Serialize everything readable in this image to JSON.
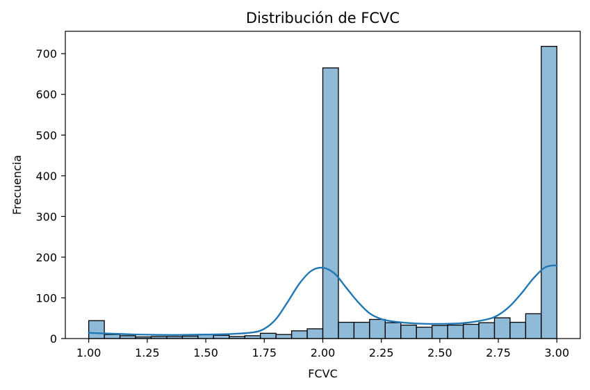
{
  "chart_data": {
    "type": "bar",
    "subtype": "histogram-with-kde",
    "title": "Distribución de FCVC",
    "xlabel": "FCVC",
    "ylabel": "Frecuencia",
    "xlim": [
      0.9,
      3.1
    ],
    "ylim": [
      0,
      755
    ],
    "xticks": [
      1.0,
      1.25,
      1.5,
      1.75,
      2.0,
      2.25,
      2.5,
      2.75,
      3.0
    ],
    "xtick_labels": [
      "1.00",
      "1.25",
      "1.50",
      "1.75",
      "2.00",
      "2.25",
      "2.50",
      "2.75",
      "3.00"
    ],
    "yticks": [
      0,
      100,
      200,
      300,
      400,
      500,
      600,
      700
    ],
    "ytick_labels": [
      "0",
      "100",
      "200",
      "300",
      "400",
      "500",
      "600",
      "700"
    ],
    "grid": false,
    "bar_color": "#1f77b4",
    "edge_color": "#000000",
    "bins": {
      "start": 1.0,
      "end": 3.0,
      "counts": [
        44,
        10,
        7,
        4,
        5,
        5,
        6,
        10,
        8,
        5,
        7,
        13,
        10,
        19,
        24,
        665,
        40,
        40,
        47,
        39,
        33,
        28,
        32,
        33,
        35,
        39,
        51,
        40,
        61,
        718
      ]
    },
    "kde": {
      "color": "#1f77b4",
      "x": [
        1.0,
        1.1,
        1.2,
        1.3,
        1.4,
        1.5,
        1.6,
        1.7,
        1.75,
        1.8,
        1.85,
        1.9,
        1.95,
        2.0,
        2.05,
        2.1,
        2.15,
        2.2,
        2.25,
        2.3,
        2.4,
        2.5,
        2.6,
        2.7,
        2.75,
        2.8,
        2.85,
        2.9,
        2.95,
        3.0
      ],
      "y": [
        14,
        12,
        10,
        9,
        9,
        10,
        11,
        15,
        24,
        48,
        90,
        135,
        166,
        174,
        160,
        125,
        90,
        62,
        48,
        42,
        37,
        36,
        38,
        47,
        58,
        80,
        112,
        148,
        175,
        180
      ]
    }
  }
}
